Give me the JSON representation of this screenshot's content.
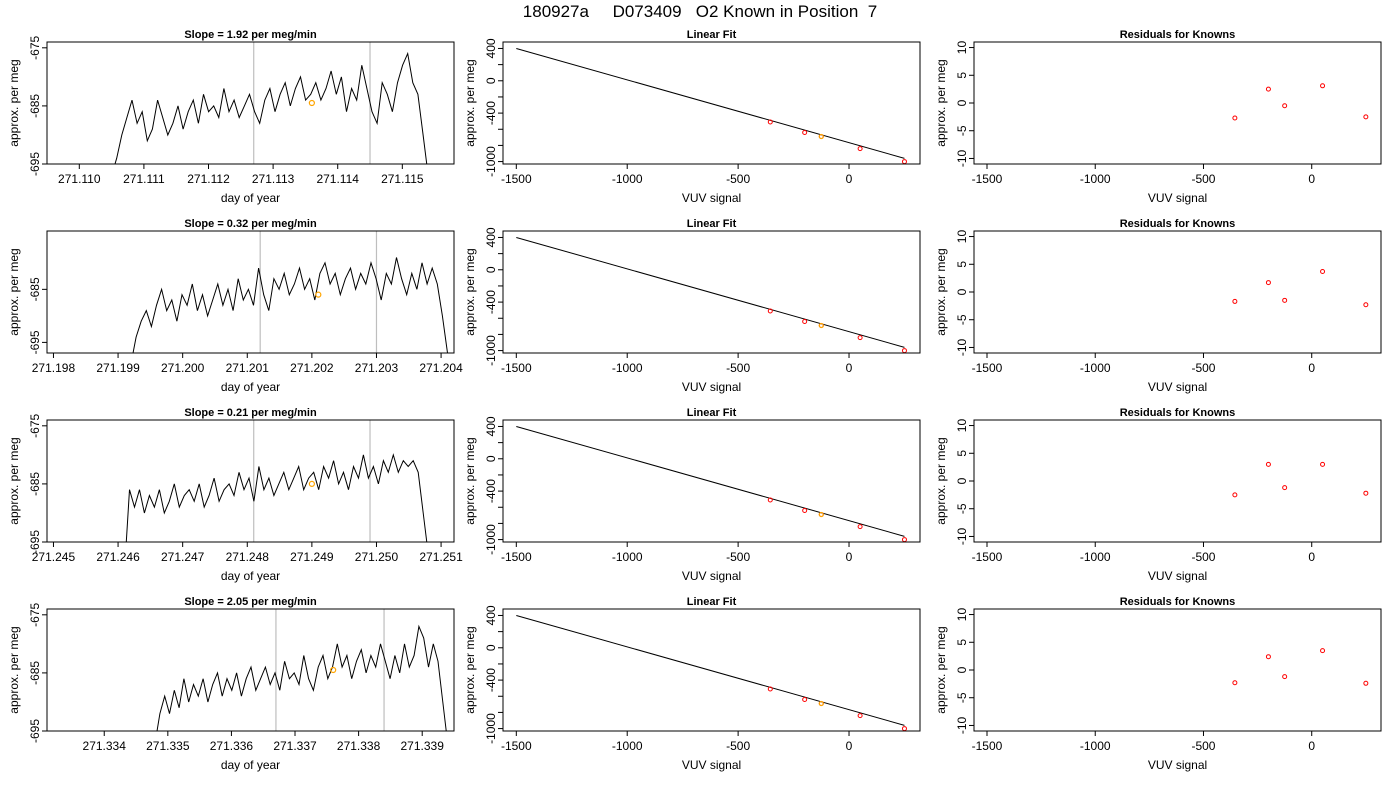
{
  "page_title": "180927a     D073409   O2 Known in Position  7",
  "colors": {
    "trace": "#000000",
    "vline": "#bebebe",
    "marker": "#ffa500",
    "residual": "#ff0000"
  },
  "chart_data": [
    {
      "type": "line",
      "title": "Slope =  1.92  per meg/min",
      "xlabel": "day of year",
      "ylabel": "approx. per meg",
      "xlim": [
        271.1095,
        271.1158
      ],
      "ylim": [
        -695,
        -674
      ],
      "xticks": [
        "271.110",
        "271.111",
        "271.112",
        "271.113",
        "271.114",
        "271.115"
      ],
      "yticks": [
        "-695",
        "-685",
        "-675"
      ],
      "ytick_values": [
        -695,
        -685,
        -675
      ],
      "vlines": [
        271.1127,
        271.1145
      ],
      "marker": {
        "x": 271.1136,
        "y": -684.5
      },
      "series": [
        {
          "x_start": 271.1105,
          "x_end": 271.1154,
          "values": [
            -697,
            -694,
            -690,
            -687,
            -684,
            -688,
            -686,
            -691,
            -689,
            -684,
            -687,
            -690,
            -688,
            -685,
            -689,
            -686,
            -684,
            -688,
            -683,
            -686,
            -685,
            -687,
            -682,
            -686,
            -684,
            -687,
            -685,
            -683,
            -686,
            -688,
            -684,
            -682,
            -686,
            -683,
            -681,
            -685,
            -682,
            -680,
            -684,
            -683,
            -681,
            -684,
            -682,
            -679,
            -683,
            -680,
            -686,
            -682,
            -684,
            -678,
            -682,
            -686,
            -688,
            -681,
            -683,
            -686,
            -681,
            -678,
            -676,
            -681,
            -683,
            -690,
            -697
          ]
        }
      ]
    },
    {
      "type": "line",
      "title": "Linear Fit",
      "xlabel": "VUV signal",
      "ylabel": "approx. per meg",
      "xlim": [
        -1560,
        320
      ],
      "ylim": [
        -1030,
        480
      ],
      "xticks": [
        "-1500",
        "-1000",
        "-500",
        "0"
      ],
      "xtick_values": [
        -1500,
        -1000,
        -500,
        0
      ],
      "yticks": [
        "-1000",
        "-800",
        "-600",
        "-400",
        "-200",
        "0",
        "200",
        "400"
      ],
      "ytick_values": [
        -1000,
        -800,
        -600,
        -400,
        -200,
        0,
        200,
        400
      ],
      "ytick_labels_shown": [
        -1000,
        -400,
        0,
        400
      ],
      "fit_line": [
        [
          -1500,
          400
        ],
        [
          250,
          -960
        ]
      ],
      "points": [
        [
          -355,
          -510
        ],
        [
          -200,
          -640
        ],
        [
          -125,
          -690
        ],
        [
          50,
          -840
        ],
        [
          250,
          -1000
        ]
      ],
      "orange_point": [
        -125,
        -690
      ]
    },
    {
      "type": "scatter",
      "title": "Residuals for Knowns",
      "xlabel": "VUV signal",
      "ylabel": "approx. per meg",
      "xlim": [
        -1560,
        320
      ],
      "ylim": [
        -11,
        11
      ],
      "xticks": [
        "-1500",
        "-1000",
        "-500",
        "0"
      ],
      "xtick_values": [
        -1500,
        -1000,
        -500,
        0
      ],
      "yticks": [
        "-10",
        "-5",
        "0",
        "5",
        "10"
      ],
      "ytick_values": [
        -10,
        -5,
        0,
        5,
        10
      ],
      "points": [
        [
          -355,
          -2.7
        ],
        [
          -200,
          2.5
        ],
        [
          -125,
          -0.5
        ],
        [
          50,
          3.1
        ],
        [
          250,
          -2.5
        ]
      ]
    },
    {
      "type": "line",
      "title": "Slope =  0.32  per meg/min",
      "xlabel": "day of year",
      "ylabel": "approx. per meg",
      "xlim": [
        271.1979,
        271.2042
      ],
      "ylim": [
        -697,
        -674
      ],
      "xticks": [
        "271.198",
        "271.199",
        "271.200",
        "271.201",
        "271.202",
        "271.203",
        "271.204"
      ],
      "yticks": [
        "-695",
        "-685"
      ],
      "ytick_values": [
        -695,
        -685
      ],
      "vlines": [
        271.2012,
        271.203
      ],
      "marker": {
        "x": 271.2021,
        "y": -686
      },
      "series": [
        {
          "x_start": 271.1992,
          "x_end": 271.2041,
          "values": [
            -699,
            -694,
            -691,
            -689,
            -692,
            -688,
            -685,
            -689,
            -687,
            -691,
            -686,
            -688,
            -684,
            -689,
            -686,
            -690,
            -687,
            -684,
            -688,
            -685,
            -689,
            -683,
            -687,
            -685,
            -688,
            -681,
            -686,
            -689,
            -683,
            -685,
            -682,
            -686,
            -684,
            -681,
            -685,
            -683,
            -687,
            -682,
            -680,
            -684,
            -682,
            -686,
            -683,
            -681,
            -685,
            -682,
            -684,
            -680,
            -683,
            -687,
            -682,
            -684,
            -679,
            -683,
            -686,
            -682,
            -685,
            -680,
            -684,
            -681,
            -684,
            -690,
            -697
          ]
        }
      ]
    },
    {
      "type": "line",
      "title": "Linear Fit",
      "xlabel": "VUV signal",
      "ylabel": "approx. per meg",
      "xlim": [
        -1560,
        320
      ],
      "ylim": [
        -1030,
        480
      ],
      "xticks": [
        "-1500",
        "-1000",
        "-500",
        "0"
      ],
      "xtick_values": [
        -1500,
        -1000,
        -500,
        0
      ],
      "yticks": [
        "-1000",
        "-800",
        "-600",
        "-400",
        "-200",
        "0",
        "200",
        "400"
      ],
      "ytick_values": [
        -1000,
        -800,
        -600,
        -400,
        -200,
        0,
        200,
        400
      ],
      "ytick_labels_shown": [
        -1000,
        -400,
        0,
        400
      ],
      "fit_line": [
        [
          -1500,
          400
        ],
        [
          250,
          -960
        ]
      ],
      "points": [
        [
          -355,
          -510
        ],
        [
          -200,
          -640
        ],
        [
          -125,
          -690
        ],
        [
          50,
          -840
        ],
        [
          250,
          -1000
        ]
      ],
      "orange_point": [
        -125,
        -690
      ]
    },
    {
      "type": "scatter",
      "title": "Residuals for Knowns",
      "xlabel": "VUV signal",
      "ylabel": "approx. per meg",
      "xlim": [
        -1560,
        320
      ],
      "ylim": [
        -11,
        11
      ],
      "xticks": [
        "-1500",
        "-1000",
        "-500",
        "0"
      ],
      "xtick_values": [
        -1500,
        -1000,
        -500,
        0
      ],
      "yticks": [
        "-10",
        "-5",
        "0",
        "5",
        "10"
      ],
      "ytick_values": [
        -10,
        -5,
        0,
        5,
        10
      ],
      "points": [
        [
          -355,
          -1.7
        ],
        [
          -200,
          1.7
        ],
        [
          -125,
          -1.5
        ],
        [
          50,
          3.7
        ],
        [
          250,
          -2.3
        ]
      ]
    },
    {
      "type": "line",
      "title": "Slope =  0.21  per meg/min",
      "xlabel": "day of year",
      "ylabel": "approx. per meg",
      "xlim": [
        271.2449,
        271.2512
      ],
      "ylim": [
        -695,
        -674
      ],
      "xticks": [
        "271.245",
        "271.246",
        "271.247",
        "271.248",
        "271.249",
        "271.250",
        "271.251"
      ],
      "yticks": [
        "-695",
        "-685",
        "-675"
      ],
      "ytick_values": [
        -695,
        -685,
        -675
      ],
      "vlines": [
        271.2481,
        271.2499
      ],
      "marker": {
        "x": 271.249,
        "y": -685
      },
      "series": [
        {
          "x_start": 271.2461,
          "x_end": 271.2508,
          "values": [
            -700,
            -686,
            -689,
            -686,
            -690,
            -687,
            -689,
            -686,
            -690,
            -688,
            -685,
            -689,
            -687,
            -686,
            -688,
            -685,
            -689,
            -687,
            -684,
            -688,
            -686,
            -685,
            -687,
            -683,
            -686,
            -684,
            -688,
            -682,
            -686,
            -684,
            -687,
            -685,
            -683,
            -686,
            -684,
            -682,
            -686,
            -684,
            -683,
            -686,
            -682,
            -684,
            -681,
            -685,
            -683,
            -686,
            -682,
            -684,
            -680,
            -684,
            -682,
            -685,
            -681,
            -683,
            -680,
            -683,
            -681,
            -682,
            -681,
            -683,
            -690,
            -697
          ]
        }
      ]
    },
    {
      "type": "line",
      "title": "Linear Fit",
      "xlabel": "VUV signal",
      "ylabel": "approx. per meg",
      "xlim": [
        -1560,
        320
      ],
      "ylim": [
        -1030,
        480
      ],
      "xticks": [
        "-1500",
        "-1000",
        "-500",
        "0"
      ],
      "xtick_values": [
        -1500,
        -1000,
        -500,
        0
      ],
      "yticks": [
        "-1000",
        "-800",
        "-600",
        "-400",
        "-200",
        "0",
        "200",
        "400"
      ],
      "ytick_values": [
        -1000,
        -800,
        -600,
        -400,
        -200,
        0,
        200,
        400
      ],
      "ytick_labels_shown": [
        -1000,
        -400,
        0,
        400
      ],
      "fit_line": [
        [
          -1500,
          400
        ],
        [
          250,
          -960
        ]
      ],
      "points": [
        [
          -355,
          -510
        ],
        [
          -200,
          -640
        ],
        [
          -125,
          -690
        ],
        [
          50,
          -840
        ],
        [
          250,
          -1000
        ]
      ],
      "orange_point": [
        -125,
        -690
      ]
    },
    {
      "type": "scatter",
      "title": "Residuals for Knowns",
      "xlabel": "VUV signal",
      "ylabel": "approx. per meg",
      "xlim": [
        -1560,
        320
      ],
      "ylim": [
        -11,
        11
      ],
      "xticks": [
        "-1500",
        "-1000",
        "-500",
        "0"
      ],
      "xtick_values": [
        -1500,
        -1000,
        -500,
        0
      ],
      "yticks": [
        "-10",
        "-5",
        "0",
        "5",
        "10"
      ],
      "ytick_values": [
        -10,
        -5,
        0,
        5,
        10
      ],
      "points": [
        [
          -355,
          -2.5
        ],
        [
          -200,
          3.0
        ],
        [
          -125,
          -1.2
        ],
        [
          50,
          3.0
        ],
        [
          250,
          -2.2
        ]
      ]
    },
    {
      "type": "line",
      "title": "Slope =  2.05  per meg/min",
      "xlabel": "day of year",
      "ylabel": "approx. per meg",
      "xlim": [
        271.3331,
        271.3395
      ],
      "ylim": [
        -695,
        -674
      ],
      "xticks": [
        "271.334",
        "271.335",
        "271.336",
        "271.337",
        "271.338",
        "271.339"
      ],
      "yticks": [
        "-695",
        "-685",
        "-675"
      ],
      "ytick_values": [
        -695,
        -685,
        -675
      ],
      "vlines": [
        271.3367,
        271.3384
      ],
      "marker": {
        "x": 271.3376,
        "y": -684.5
      },
      "series": [
        {
          "x_start": 271.3348,
          "x_end": 271.3394,
          "values": [
            -697,
            -692,
            -689,
            -692,
            -688,
            -691,
            -686,
            -690,
            -687,
            -689,
            -686,
            -690,
            -687,
            -685,
            -689,
            -686,
            -688,
            -685,
            -689,
            -686,
            -684,
            -688,
            -686,
            -684,
            -687,
            -685,
            -688,
            -683,
            -686,
            -685,
            -687,
            -682,
            -686,
            -688,
            -684,
            -682,
            -686,
            -684,
            -680,
            -684,
            -682,
            -686,
            -683,
            -681,
            -685,
            -682,
            -684,
            -680,
            -683,
            -686,
            -682,
            -685,
            -680,
            -684,
            -682,
            -677,
            -679,
            -684,
            -680,
            -683,
            -690,
            -697
          ]
        }
      ]
    },
    {
      "type": "line",
      "title": "Linear Fit",
      "xlabel": "VUV signal",
      "ylabel": "approx. per meg",
      "xlim": [
        -1560,
        320
      ],
      "ylim": [
        -1030,
        480
      ],
      "xticks": [
        "-1500",
        "-1000",
        "-500",
        "0"
      ],
      "xtick_values": [
        -1500,
        -1000,
        -500,
        0
      ],
      "yticks": [
        "-1000",
        "-800",
        "-600",
        "-400",
        "-200",
        "0",
        "200",
        "400"
      ],
      "ytick_values": [
        -1000,
        -800,
        -600,
        -400,
        -200,
        0,
        200,
        400
      ],
      "ytick_labels_shown": [
        -1000,
        -400,
        0,
        400
      ],
      "fit_line": [
        [
          -1500,
          400
        ],
        [
          250,
          -960
        ]
      ],
      "points": [
        [
          -355,
          -510
        ],
        [
          -200,
          -640
        ],
        [
          -125,
          -690
        ],
        [
          50,
          -840
        ],
        [
          250,
          -1000
        ]
      ],
      "orange_point": [
        -125,
        -690
      ]
    },
    {
      "type": "scatter",
      "title": "Residuals for Knowns",
      "xlabel": "VUV signal",
      "ylabel": "approx. per meg",
      "xlim": [
        -1560,
        320
      ],
      "ylim": [
        -11,
        11
      ],
      "xticks": [
        "-1500",
        "-1000",
        "-500",
        "0"
      ],
      "xtick_values": [
        -1500,
        -1000,
        -500,
        0
      ],
      "yticks": [
        "-10",
        "-5",
        "0",
        "5",
        "10"
      ],
      "ytick_values": [
        -10,
        -5,
        0,
        5,
        10
      ],
      "points": [
        [
          -355,
          -2.3
        ],
        [
          -200,
          2.4
        ],
        [
          -125,
          -1.2
        ],
        [
          50,
          3.5
        ],
        [
          250,
          -2.4
        ]
      ]
    }
  ]
}
